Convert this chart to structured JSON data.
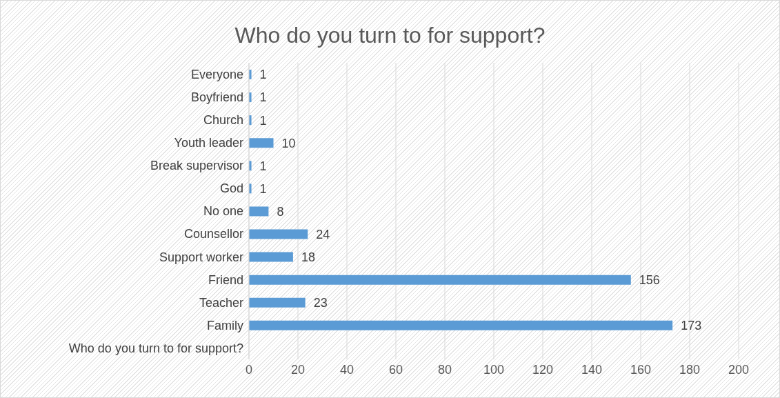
{
  "chart_data": {
    "type": "bar",
    "orientation": "horizontal",
    "title": "Who do you turn to for support?",
    "categories": [
      "Everyone",
      "Boyfriend",
      "Church",
      "Youth leader",
      "Break supervisor",
      "God",
      "No one",
      "Counsellor",
      "Support worker",
      "Friend",
      "Teacher",
      "Family",
      "Who do you turn to for support?"
    ],
    "values": [
      1,
      1,
      1,
      10,
      1,
      1,
      8,
      24,
      18,
      156,
      23,
      173,
      null
    ],
    "color": "#5b9bd5",
    "xlim": [
      0,
      200
    ],
    "xticks": [
      0,
      20,
      40,
      60,
      80,
      100,
      120,
      140,
      160,
      180,
      200
    ],
    "grid": "x",
    "data_labels": true
  }
}
